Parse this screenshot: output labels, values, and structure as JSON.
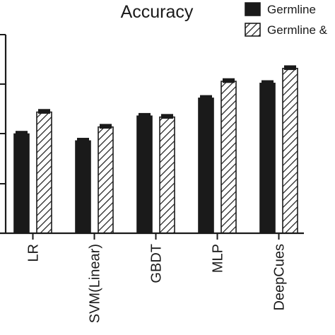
{
  "chart_data": {
    "type": "bar",
    "title": "Accuracy",
    "xlabel": "",
    "ylabel": "",
    "categories": [
      "LR",
      "SVM(Linear)",
      "GBDT",
      "MLP",
      "DeepCues"
    ],
    "ylim": [
      0,
      1
    ],
    "grid": false,
    "legend_position": "top-right",
    "series": [
      {
        "name": "Germline",
        "pattern": "solid",
        "color": "#1a1a1a",
        "values": [
          0.84,
          0.833,
          0.858,
          0.876,
          0.891
        ],
        "errors": [
          0.002,
          0.002,
          0.002,
          0.002,
          0.002
        ]
      },
      {
        "name": "Germline &",
        "pattern": "hatched",
        "color": "#1a1a1a",
        "values": [
          0.862,
          0.847,
          0.857,
          0.893,
          0.906
        ],
        "errors": [
          0.002,
          0.002,
          0.002,
          0.002,
          0.002
        ]
      }
    ]
  }
}
